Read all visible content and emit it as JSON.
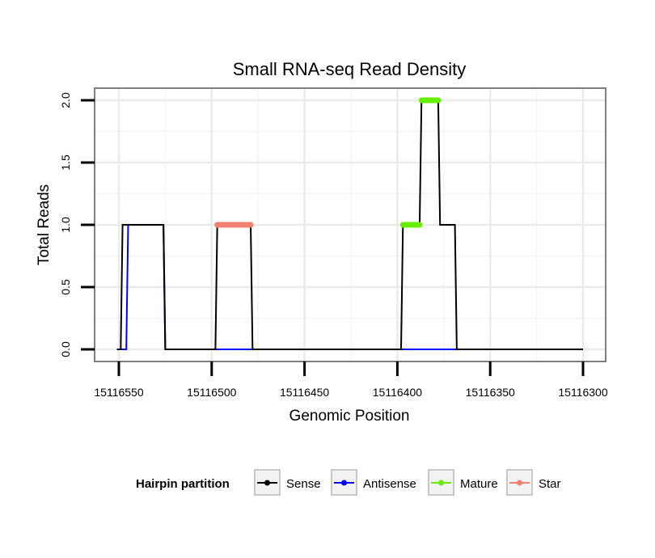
{
  "chart_data": {
    "type": "line",
    "title": "Small RNA-seq Read Density",
    "xlabel": "Genomic Position",
    "ylabel": "Total Reads",
    "xlim": [
      15116550,
      15116300
    ],
    "x_reversed": true,
    "ylim": [
      0,
      2
    ],
    "x_ticks": [
      15116550,
      15116500,
      15116450,
      15116400,
      15116350,
      15116300
    ],
    "x_tick_labels": [
      "15116550",
      "15116500",
      "15116450",
      "15116400",
      "15116350",
      "15116300"
    ],
    "y_ticks": [
      0,
      0.5,
      1,
      1.5,
      2
    ],
    "y_tick_labels": [
      "0.0",
      "0.5",
      "1.0",
      "1.5",
      "2.0"
    ],
    "legend": {
      "title": "Hairpin partition",
      "position": "bottom",
      "entries": [
        {
          "label": "Sense",
          "color": "#000000"
        },
        {
          "label": "Antisense",
          "color": "#0000ff"
        },
        {
          "label": "Mature",
          "color": "#66ee00"
        },
        {
          "label": "Star",
          "color": "#f08070"
        }
      ]
    },
    "series": [
      {
        "name": "Antisense",
        "color": "#0000ff",
        "style": "step",
        "x": [
          15116551,
          15116546,
          15116545,
          15116526,
          15116525,
          15116300
        ],
        "y": [
          0,
          0,
          1,
          1,
          0,
          0
        ]
      },
      {
        "name": "Sense",
        "color": "#000000",
        "style": "step",
        "x": [
          15116551,
          15116549,
          15116548,
          15116526,
          15116525,
          15116498,
          15116497,
          15116479,
          15116478,
          15116398,
          15116397,
          15116388,
          15116387,
          15116378,
          15116377,
          15116369,
          15116368,
          15116300
        ],
        "y": [
          0,
          0,
          1,
          1,
          0,
          0,
          1,
          1,
          0,
          0,
          1,
          1,
          2,
          2,
          1,
          1,
          0,
          0
        ]
      },
      {
        "name": "Star",
        "color": "#f08070",
        "style": "bar",
        "x": [
          15116497,
          15116479
        ],
        "y": [
          1,
          1
        ]
      },
      {
        "name": "Mature",
        "color": "#66ee00",
        "style": "bar",
        "segments": [
          {
            "x": [
              15116397,
              15116388
            ],
            "y": [
              1,
              1
            ]
          },
          {
            "x": [
              15116387,
              15116378
            ],
            "y": [
              2,
              2
            ]
          }
        ]
      }
    ]
  }
}
